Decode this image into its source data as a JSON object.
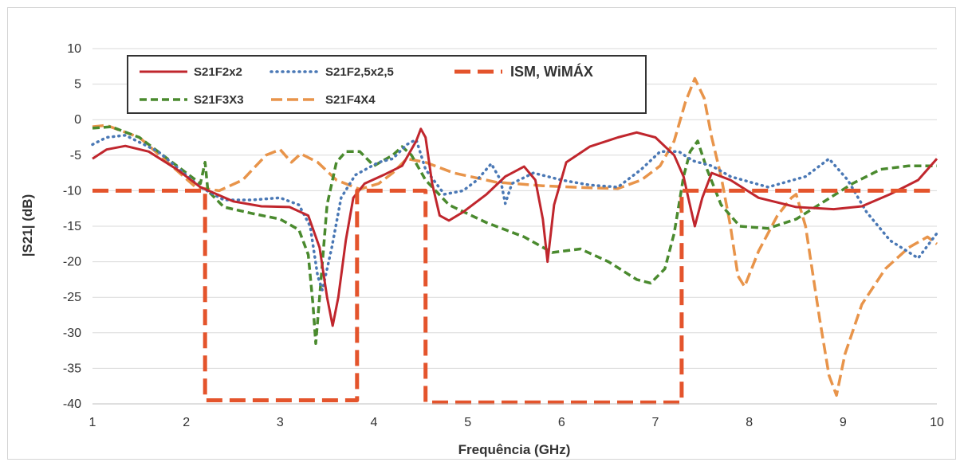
{
  "chart_data": {
    "type": "line",
    "xlabel": "Frequência (GHz)",
    "ylabel": "|S21| (dB)",
    "xlim": [
      1,
      10
    ],
    "ylim": [
      -40,
      10
    ],
    "xticks": [
      1,
      2,
      3,
      4,
      5,
      6,
      7,
      8,
      9,
      10
    ],
    "yticks": [
      10,
      5,
      0,
      -5,
      -10,
      -15,
      -20,
      -25,
      -30,
      -35,
      -40
    ],
    "grid": "horizontal",
    "legend_position": "top-left",
    "series": [
      {
        "name": "S21F2x2",
        "color": "#c0262d",
        "style": "solid",
        "points": [
          [
            1,
            -5.5
          ],
          [
            1.15,
            -4.2
          ],
          [
            1.35,
            -3.7
          ],
          [
            1.6,
            -4.5
          ],
          [
            1.9,
            -7
          ],
          [
            2.15,
            -9.5
          ],
          [
            2.5,
            -11.5
          ],
          [
            2.8,
            -12.2
          ],
          [
            3.1,
            -12.3
          ],
          [
            3.3,
            -13.5
          ],
          [
            3.42,
            -18
          ],
          [
            3.5,
            -25
          ],
          [
            3.56,
            -29
          ],
          [
            3.62,
            -25
          ],
          [
            3.7,
            -17
          ],
          [
            3.78,
            -11
          ],
          [
            3.9,
            -9
          ],
          [
            4.1,
            -7.8
          ],
          [
            4.3,
            -6.5
          ],
          [
            4.45,
            -3
          ],
          [
            4.5,
            -1.3
          ],
          [
            4.55,
            -2.5
          ],
          [
            4.62,
            -9
          ],
          [
            4.7,
            -13.5
          ],
          [
            4.8,
            -14.2
          ],
          [
            4.95,
            -13
          ],
          [
            5.2,
            -10.5
          ],
          [
            5.4,
            -8
          ],
          [
            5.6,
            -6.6
          ],
          [
            5.72,
            -8.5
          ],
          [
            5.8,
            -14
          ],
          [
            5.85,
            -20
          ],
          [
            5.92,
            -12
          ],
          [
            6.05,
            -6
          ],
          [
            6.3,
            -3.8
          ],
          [
            6.6,
            -2.5
          ],
          [
            6.8,
            -1.8
          ],
          [
            7.0,
            -2.5
          ],
          [
            7.2,
            -5
          ],
          [
            7.3,
            -8
          ],
          [
            7.35,
            -11
          ],
          [
            7.42,
            -15
          ],
          [
            7.5,
            -11
          ],
          [
            7.6,
            -7.5
          ],
          [
            7.8,
            -8.5
          ],
          [
            8.1,
            -11
          ],
          [
            8.5,
            -12.3
          ],
          [
            8.9,
            -12.6
          ],
          [
            9.2,
            -12.2
          ],
          [
            9.5,
            -10.5
          ],
          [
            9.8,
            -8.5
          ],
          [
            10,
            -5.5
          ]
        ]
      },
      {
        "name": "S21F2,5x2,5",
        "color": "#4a78b5",
        "style": "dotted",
        "points": [
          [
            1,
            -3.5
          ],
          [
            1.15,
            -2.5
          ],
          [
            1.35,
            -2.2
          ],
          [
            1.7,
            -4.5
          ],
          [
            2.0,
            -7.8
          ],
          [
            2.15,
            -9.5
          ],
          [
            2.4,
            -11.3
          ],
          [
            2.7,
            -11.3
          ],
          [
            3.0,
            -11
          ],
          [
            3.2,
            -12
          ],
          [
            3.32,
            -15
          ],
          [
            3.4,
            -22
          ],
          [
            3.45,
            -24
          ],
          [
            3.55,
            -18
          ],
          [
            3.65,
            -11
          ],
          [
            3.8,
            -7.8
          ],
          [
            4.05,
            -6
          ],
          [
            4.2,
            -5.5
          ],
          [
            4.35,
            -3.5
          ],
          [
            4.45,
            -2.8
          ],
          [
            4.55,
            -7
          ],
          [
            4.75,
            -10.5
          ],
          [
            4.95,
            -10
          ],
          [
            5.1,
            -8.5
          ],
          [
            5.25,
            -6.2
          ],
          [
            5.35,
            -8.5
          ],
          [
            5.4,
            -11.8
          ],
          [
            5.47,
            -9
          ],
          [
            5.7,
            -7.5
          ],
          [
            6.0,
            -8.5
          ],
          [
            6.3,
            -9.2
          ],
          [
            6.6,
            -9.5
          ],
          [
            6.85,
            -7
          ],
          [
            7.05,
            -4.5
          ],
          [
            7.25,
            -4.5
          ],
          [
            7.4,
            -5.8
          ],
          [
            7.6,
            -6.5
          ],
          [
            7.8,
            -8
          ],
          [
            8.2,
            -9.5
          ],
          [
            8.6,
            -8
          ],
          [
            8.85,
            -5.5
          ],
          [
            9.05,
            -8.5
          ],
          [
            9.25,
            -13
          ],
          [
            9.5,
            -17
          ],
          [
            9.8,
            -19.5
          ],
          [
            10,
            -16
          ]
        ]
      },
      {
        "name": "ISM, WiMÁX",
        "color": "#e4542c",
        "style": "dashed-thick",
        "points": [
          [
            1,
            -10
          ],
          [
            2.2,
            -10
          ],
          [
            2.2,
            -39.5
          ],
          [
            3.82,
            -39.5
          ],
          [
            3.82,
            -10
          ],
          [
            4.55,
            -10
          ],
          [
            4.55,
            -39.8
          ],
          [
            7.28,
            -39.8
          ],
          [
            7.28,
            -10
          ],
          [
            10,
            -10
          ]
        ]
      },
      {
        "name": "S21F3X3",
        "color": "#4a8a2e",
        "style": "dashed",
        "points": [
          [
            1,
            -1.2
          ],
          [
            1.2,
            -1
          ],
          [
            1.5,
            -2.5
          ],
          [
            1.8,
            -5.5
          ],
          [
            2.1,
            -8.5
          ],
          [
            2.15,
            -9
          ],
          [
            2.2,
            -6
          ],
          [
            2.23,
            -10
          ],
          [
            2.4,
            -12.3
          ],
          [
            2.7,
            -13.2
          ],
          [
            3.0,
            -14
          ],
          [
            3.2,
            -15.5
          ],
          [
            3.3,
            -19
          ],
          [
            3.35,
            -26
          ],
          [
            3.38,
            -31.5
          ],
          [
            3.42,
            -25
          ],
          [
            3.5,
            -12
          ],
          [
            3.6,
            -6
          ],
          [
            3.7,
            -4.5
          ],
          [
            3.85,
            -4.5
          ],
          [
            4.0,
            -6.5
          ],
          [
            4.2,
            -5
          ],
          [
            4.3,
            -3.8
          ],
          [
            4.4,
            -5
          ],
          [
            4.55,
            -8.5
          ],
          [
            4.8,
            -12
          ],
          [
            5.2,
            -14.5
          ],
          [
            5.6,
            -16.5
          ],
          [
            5.9,
            -18.7
          ],
          [
            6.2,
            -18.2
          ],
          [
            6.5,
            -20
          ],
          [
            6.8,
            -22.5
          ],
          [
            6.95,
            -23
          ],
          [
            7.1,
            -21
          ],
          [
            7.2,
            -16
          ],
          [
            7.3,
            -8
          ],
          [
            7.37,
            -4.5
          ],
          [
            7.45,
            -3
          ],
          [
            7.55,
            -7
          ],
          [
            7.7,
            -12
          ],
          [
            7.9,
            -15
          ],
          [
            8.2,
            -15.3
          ],
          [
            8.5,
            -14
          ],
          [
            8.8,
            -11.5
          ],
          [
            9.1,
            -9
          ],
          [
            9.4,
            -7
          ],
          [
            9.7,
            -6.5
          ],
          [
            10,
            -6.5
          ]
        ]
      },
      {
        "name": "S21F4X4",
        "color": "#e8944a",
        "style": "dashed",
        "points": [
          [
            1,
            -1
          ],
          [
            1.15,
            -0.8
          ],
          [
            1.5,
            -2.5
          ],
          [
            1.8,
            -6
          ],
          [
            2.1,
            -9.5
          ],
          [
            2.35,
            -10
          ],
          [
            2.6,
            -8.5
          ],
          [
            2.85,
            -5
          ],
          [
            3.0,
            -4.2
          ],
          [
            3.12,
            -6
          ],
          [
            3.22,
            -4.8
          ],
          [
            3.4,
            -6
          ],
          [
            3.6,
            -8.5
          ],
          [
            3.85,
            -9.8
          ],
          [
            4.05,
            -9
          ],
          [
            4.2,
            -7.5
          ],
          [
            4.35,
            -5.5
          ],
          [
            4.55,
            -6
          ],
          [
            4.85,
            -7.5
          ],
          [
            5.3,
            -8.8
          ],
          [
            5.8,
            -9.3
          ],
          [
            6.3,
            -9.6
          ],
          [
            6.6,
            -9.7
          ],
          [
            6.85,
            -8.5
          ],
          [
            7.05,
            -6.5
          ],
          [
            7.2,
            -3
          ],
          [
            7.32,
            2.5
          ],
          [
            7.42,
            5.8
          ],
          [
            7.52,
            3
          ],
          [
            7.6,
            -2.5
          ],
          [
            7.7,
            -8
          ],
          [
            7.8,
            -15
          ],
          [
            7.88,
            -22
          ],
          [
            7.95,
            -23.5
          ],
          [
            8.1,
            -18.5
          ],
          [
            8.3,
            -13.5
          ],
          [
            8.45,
            -11
          ],
          [
            8.5,
            -10.5
          ],
          [
            8.6,
            -15
          ],
          [
            8.75,
            -28
          ],
          [
            8.85,
            -36
          ],
          [
            8.93,
            -38.8
          ],
          [
            9.02,
            -33
          ],
          [
            9.2,
            -26
          ],
          [
            9.45,
            -21
          ],
          [
            9.7,
            -18
          ],
          [
            9.9,
            -16.5
          ],
          [
            10,
            -17.5
          ]
        ]
      }
    ]
  }
}
